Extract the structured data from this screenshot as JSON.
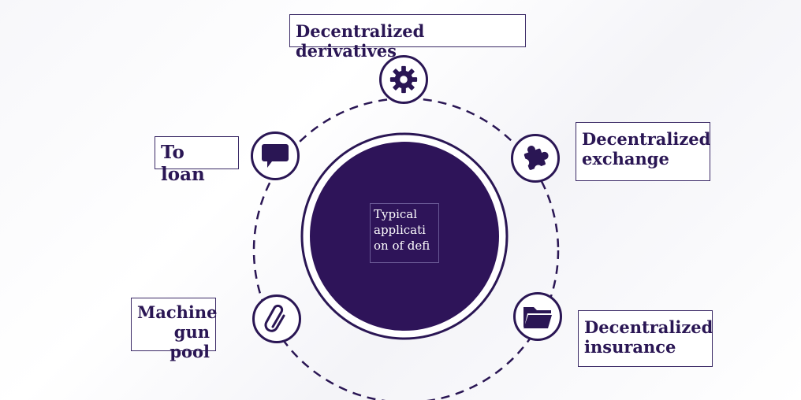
{
  "diagram": {
    "center_label": "Typical applicati on of defi",
    "items": [
      {
        "label": "Decentralized derivatives",
        "icon": "gear-icon"
      },
      {
        "label": "Decentralized exchange",
        "icon": "puzzle-icon"
      },
      {
        "label": "Decentralized insurance",
        "icon": "folder-icon"
      },
      {
        "label": "Machine gun pool",
        "icon": "paperclip-icon"
      },
      {
        "label": "To loan",
        "icon": "speech-bubble-icon"
      }
    ]
  },
  "colors": {
    "primary": "#2a1654",
    "center_fill": "#2e1459",
    "label_text": "#2a1654",
    "background": "#ffffff"
  }
}
